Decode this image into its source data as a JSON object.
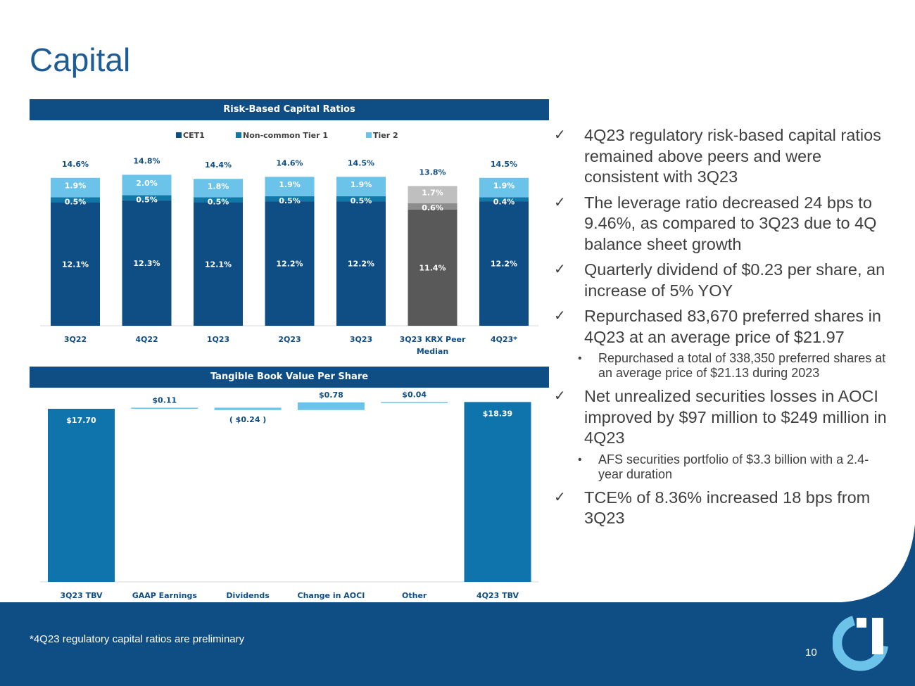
{
  "title": "Capital",
  "colors": {
    "navy": "#0f4d85",
    "cet1": "#0f4d85",
    "noncommon_tier1": "#1078a8",
    "tier2": "#6cc3ea",
    "peer_cet1": "#595959",
    "peer_noncommon": "#8c8c8c",
    "peer_tier2": "#bfbfbf",
    "tbv_total": "#0f74ab",
    "tbv_change": "#6cc3ea",
    "title_blue": "#1d5c94"
  },
  "chart_data": [
    {
      "type": "bar",
      "stacked": true,
      "title": "Risk-Based Capital Ratios",
      "categories": [
        "3Q22",
        "4Q22",
        "1Q23",
        "2Q23",
        "3Q23",
        "3Q23 KRX Peer Median",
        "4Q23*"
      ],
      "category_labels": [
        [
          "3Q22"
        ],
        [
          "4Q22"
        ],
        [
          "1Q23"
        ],
        [
          "2Q23"
        ],
        [
          "3Q23"
        ],
        [
          "3Q23 KRX Peer",
          "Median"
        ],
        [
          "4Q23*"
        ]
      ],
      "series": [
        {
          "name": "CET1",
          "values": [
            12.1,
            12.3,
            12.1,
            12.2,
            12.2,
            11.4,
            12.2
          ],
          "labels": [
            "12.1%",
            "12.3%",
            "12.1%",
            "12.2%",
            "12.2%",
            "11.4%",
            "12.2%"
          ]
        },
        {
          "name": "Non-common Tier 1",
          "values": [
            0.5,
            0.5,
            0.5,
            0.5,
            0.5,
            0.6,
            0.4
          ],
          "labels": [
            "0.5%",
            "0.5%",
            "0.5%",
            "0.5%",
            "0.5%",
            "0.6%",
            "0.4%"
          ]
        },
        {
          "name": "Tier 2",
          "values": [
            1.9,
            2.0,
            1.8,
            1.9,
            1.9,
            1.7,
            1.9
          ],
          "labels": [
            "1.9%",
            "2.0%",
            "1.8%",
            "1.9%",
            "1.9%",
            "1.7%",
            "1.9%"
          ]
        }
      ],
      "totals": [
        14.6,
        14.8,
        14.4,
        14.6,
        14.5,
        13.8,
        14.5
      ],
      "total_labels": [
        "14.6%",
        "14.8%",
        "14.4%",
        "14.6%",
        "14.5%",
        "13.8%",
        "14.5%"
      ],
      "highlight_category": "3Q23 KRX Peer Median",
      "legend": "top",
      "ylim": [
        0,
        16
      ],
      "grid": false,
      "xlabel": "",
      "ylabel": ""
    },
    {
      "type": "waterfall",
      "title": "Tangible Book Value Per Share",
      "categories": [
        "3Q23 TBV",
        "GAAP Earnings",
        "Dividends",
        "Change in AOCI",
        "Other",
        "4Q23 TBV"
      ],
      "values": [
        17.7,
        0.11,
        -0.24,
        0.78,
        0.04,
        18.39
      ],
      "kinds": [
        "total",
        "delta",
        "delta",
        "delta",
        "delta",
        "total"
      ],
      "labels": [
        "$17.70",
        "$0.11",
        "( $0.24 )",
        "$0.78",
        "$0.04",
        "$18.39"
      ],
      "grid": false,
      "xlabel": "",
      "ylabel": ""
    }
  ],
  "bullets": [
    {
      "text": "4Q23 regulatory risk-based capital ratios remained above peers and were consistent with 3Q23",
      "subs": []
    },
    {
      "text": "The leverage ratio decreased 24 bps to 9.46%, as compared to 3Q23 due to 4Q balance sheet growth",
      "subs": []
    },
    {
      "text": "Quarterly dividend of $0.23 per share, an increase of 5% YOY",
      "subs": []
    },
    {
      "text": "Repurchased 83,670 preferred shares in 4Q23 at an average price of $21.97",
      "subs": [
        "Repurchased a total of 338,350 preferred shares at an average price of $21.13 during 2023"
      ]
    },
    {
      "text": "Net unrealized securities losses in AOCI improved by $97 million to $249 million in 4Q23",
      "subs": [
        "AFS securities portfolio of $3.3 billion with a 2.4-year duration"
      ]
    },
    {
      "text": "TCE% of 8.36% increased 18 bps from 3Q23",
      "subs": []
    }
  ],
  "footnote": "*4Q23 regulatory capital ratios are preliminary",
  "page_number": "10",
  "icons": {
    "check": "checkmark-icon",
    "bullet": "bullet-dot-icon",
    "logo": "company-logo-icon"
  }
}
